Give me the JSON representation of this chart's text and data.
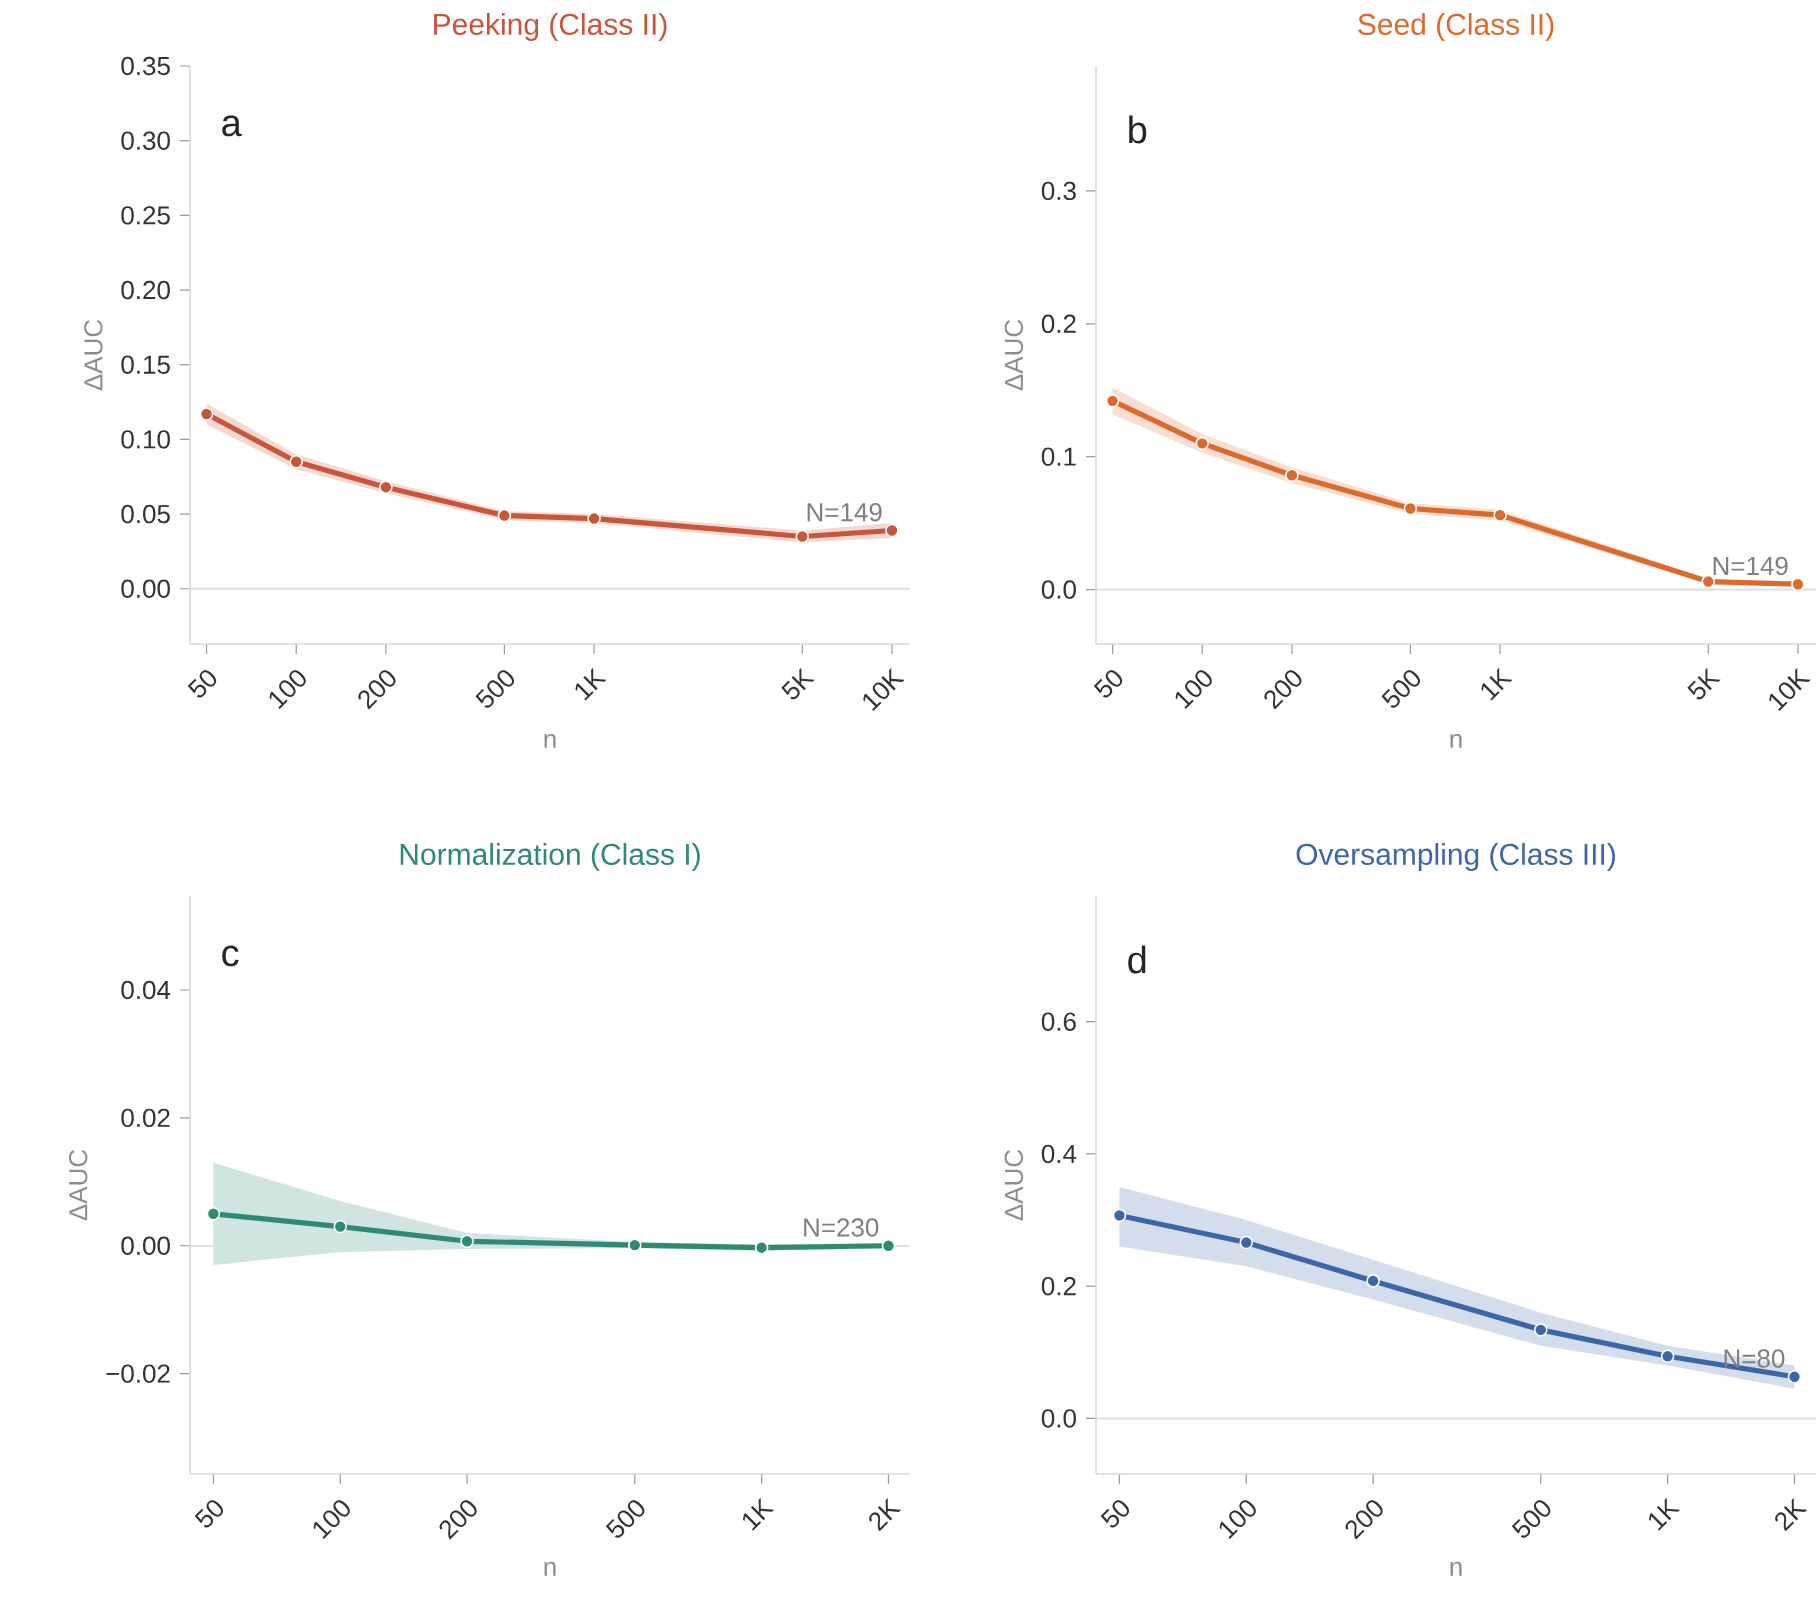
{
  "chart_data": [
    {
      "type": "line",
      "title": "Peeking (Class II)",
      "xlabel": "n",
      "ylabel": "ΔAUC",
      "log": "x",
      "marker": "circle",
      "line_style": "solid",
      "annotations": [
        "a",
        "N=149"
      ],
      "x": [
        50,
        100,
        200,
        500,
        1000,
        5000,
        10000
      ],
      "series": [
        {
          "color": "#c9553a",
          "values": [
            0.117,
            0.085,
            0.068,
            0.049,
            0.047,
            0.035,
            0.039
          ],
          "lower": [
            0.11,
            0.08,
            0.064,
            0.046,
            0.044,
            0.031,
            0.034
          ],
          "upper": [
            0.124,
            0.09,
            0.072,
            0.052,
            0.05,
            0.039,
            0.044
          ]
        }
      ],
      "xlim": [
        44,
        11500
      ],
      "ylim": [
        -0.037,
        0.35
      ],
      "xticks": [
        50,
        100,
        200,
        500,
        {
          "value": 1000,
          "label": "1K"
        },
        {
          "value": 5000,
          "label": "5K"
        },
        {
          "value": 10000,
          "label": "10K"
        }
      ],
      "yticks": [
        {
          "value": 0,
          "label": "0.00"
        },
        {
          "value": 0.05,
          "label": "0.05"
        },
        {
          "value": 0.1,
          "label": "0.10"
        },
        {
          "value": 0.15,
          "label": "0.15"
        },
        {
          "value": 0.2,
          "label": "0.20"
        },
        {
          "value": 0.25,
          "label": "0.25"
        },
        {
          "value": 0.3,
          "label": "0.30"
        },
        {
          "value": 0.35,
          "label": "0.35"
        }
      ],
      "ref_lines": [
        {
          "axis": "y",
          "value": 0,
          "color": "#dddddd"
        }
      ]
    },
    {
      "type": "line",
      "title": "Seed (Class II)",
      "xlabel": "n",
      "ylabel": "ΔAUC",
      "log": "x",
      "marker": "circle",
      "line_style": "solid",
      "annotations": [
        "b",
        "N=149"
      ],
      "x": [
        50,
        100,
        200,
        500,
        1000,
        5000,
        10000
      ],
      "series": [
        {
          "color": "#dc6a2c",
          "values": [
            0.142,
            0.11,
            0.086,
            0.061,
            0.056,
            0.006,
            0.004
          ],
          "lower": [
            0.132,
            0.103,
            0.08,
            0.057,
            0.052,
            0.004,
            0.003
          ],
          "upper": [
            0.152,
            0.117,
            0.092,
            0.065,
            0.06,
            0.008,
            0.005
          ]
        }
      ],
      "xlim": [
        44,
        11500
      ],
      "ylim": [
        -0.041,
        0.394
      ],
      "xticks": [
        50,
        100,
        200,
        500,
        {
          "value": 1000,
          "label": "1K"
        },
        {
          "value": 5000,
          "label": "5K"
        },
        {
          "value": 10000,
          "label": "10K"
        }
      ],
      "yticks": [
        {
          "value": 0,
          "label": "0.0"
        },
        {
          "value": 0.1,
          "label": "0.1"
        },
        {
          "value": 0.2,
          "label": "0.2"
        },
        {
          "value": 0.3,
          "label": "0.3"
        }
      ],
      "ref_lines": [
        {
          "axis": "y",
          "value": 0,
          "color": "#dddddd"
        }
      ]
    },
    {
      "type": "line",
      "title": "Normalization (Class I)",
      "xlabel": "n",
      "ylabel": "ΔAUC",
      "log": "x",
      "marker": "circle",
      "line_style": "solid",
      "annotations": [
        "c",
        "N=230"
      ],
      "x": [
        50,
        100,
        200,
        500,
        1000,
        2000
      ],
      "series": [
        {
          "color": "#2f8a73",
          "values": [
            0.005,
            0.003,
            0.0007,
            0.0001,
            -0.0003,
            0.0
          ],
          "lower": [
            -0.003,
            -0.001,
            -0.0005,
            -0.0004,
            -0.0008,
            -0.0004
          ],
          "upper": [
            0.013,
            0.007,
            0.002,
            0.0006,
            0.0002,
            0.0004
          ]
        }
      ],
      "xlim": [
        44,
        2250
      ],
      "ylim": [
        -0.0357,
        0.0547
      ],
      "xticks": [
        50,
        100,
        200,
        500,
        {
          "value": 1000,
          "label": "1K"
        },
        {
          "value": 2000,
          "label": "2K"
        }
      ],
      "yticks": [
        {
          "value": -0.02,
          "label": "−0.02"
        },
        {
          "value": 0,
          "label": "0.00"
        },
        {
          "value": 0.02,
          "label": "0.02"
        },
        {
          "value": 0.04,
          "label": "0.04"
        }
      ],
      "ref_lines": [
        {
          "axis": "y",
          "value": 0,
          "color": "#dddddd"
        }
      ]
    },
    {
      "type": "line",
      "title": "Oversampling (Class III)",
      "xlabel": "n",
      "ylabel": "ΔAUC",
      "log": "x",
      "marker": "circle",
      "line_style": "solid",
      "annotations": [
        "d",
        "N=80"
      ],
      "x": [
        50,
        100,
        200,
        500,
        1000,
        2000
      ],
      "series": [
        {
          "color": "#3d66a7",
          "values": [
            0.307,
            0.266,
            0.208,
            0.134,
            0.094,
            0.063
          ],
          "lower": [
            0.26,
            0.23,
            0.18,
            0.11,
            0.08,
            0.045
          ],
          "upper": [
            0.35,
            0.3,
            0.24,
            0.16,
            0.11,
            0.08
          ]
        }
      ],
      "xlim": [
        44,
        2250
      ],
      "ylim": [
        -0.084,
        0.79
      ],
      "xticks": [
        50,
        100,
        200,
        500,
        {
          "value": 1000,
          "label": "1K"
        },
        {
          "value": 2000,
          "label": "2K"
        }
      ],
      "yticks": [
        {
          "value": 0,
          "label": "0.0"
        },
        {
          "value": 0.2,
          "label": "0.2"
        },
        {
          "value": 0.4,
          "label": "0.4"
        },
        {
          "value": 0.6,
          "label": "0.6"
        }
      ],
      "ref_lines": [
        {
          "axis": "y",
          "value": 0,
          "color": "#dddddd"
        }
      ]
    }
  ]
}
